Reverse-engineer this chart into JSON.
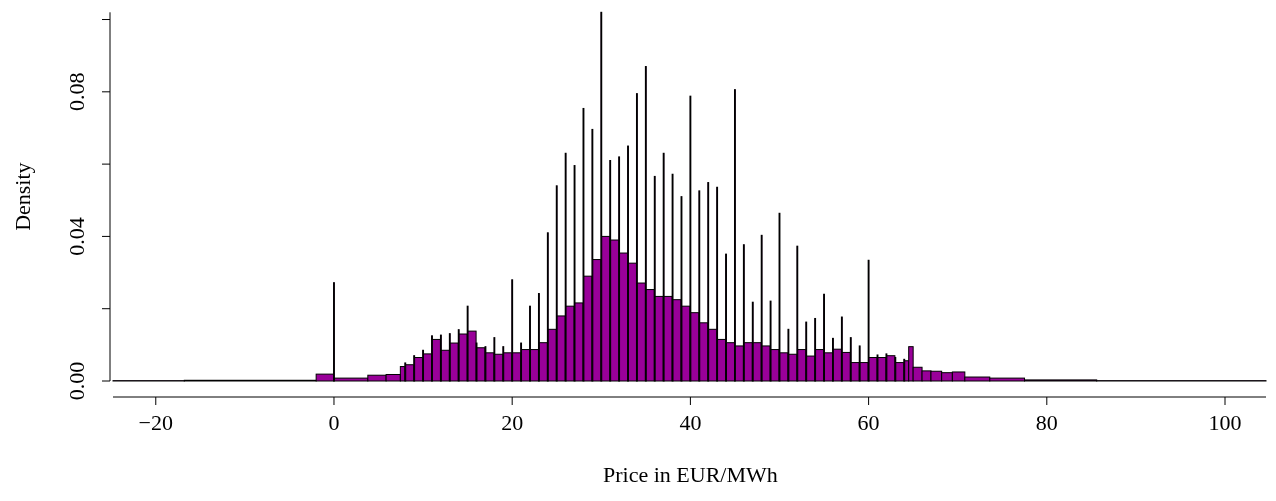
{
  "chart_data": {
    "type": "histogram",
    "xlabel": "Price in EUR/MWh",
    "ylabel": "Density",
    "color": "#990099",
    "xlim": [
      -24.8,
      104.6
    ],
    "ylim": [
      0,
      0.102
    ],
    "xticks": [
      {
        "value": -20,
        "label": "−20"
      },
      0,
      20,
      40,
      60,
      80,
      100
    ],
    "yticks": [
      {
        "value": 0,
        "label": "0.00"
      },
      {
        "value": 0.02,
        "label": null
      },
      {
        "value": 0.04,
        "label": "0.04"
      },
      {
        "value": 0.06,
        "label": null
      },
      {
        "value": 0.08,
        "label": "0.08"
      },
      {
        "value": 0.1,
        "label": null
      }
    ],
    "bins": [
      -24.8,
      -16.8,
      -2,
      -0.05,
      0.05,
      3.8,
      5.85,
      7.45,
      7.95,
      8.05,
      8.95,
      9.05,
      9.95,
      10.05,
      10.95,
      11.05,
      11.95,
      12.05,
      12.95,
      13.05,
      13.95,
      14.05,
      14.95,
      15.05,
      15.95,
      16.05,
      16.95,
      17.05,
      17.95,
      18.05,
      18.95,
      19.05,
      19.95,
      20.05,
      20.95,
      21.05,
      21.95,
      22.05,
      22.95,
      23.05,
      23.95,
      24.05,
      24.95,
      25.05,
      25.95,
      26.05,
      26.95,
      27.05,
      27.95,
      28.05,
      28.95,
      29.05,
      29.95,
      30.05,
      30.95,
      31.05,
      31.95,
      32.05,
      32.95,
      33.05,
      33.95,
      34.05,
      34.95,
      35.05,
      35.95,
      36.05,
      36.95,
      37.05,
      37.95,
      38.05,
      38.95,
      39.05,
      39.95,
      40.05,
      40.95,
      41.05,
      41.95,
      42.05,
      42.95,
      43.05,
      43.95,
      44.05,
      44.95,
      45.05,
      45.95,
      46.05,
      46.95,
      47.05,
      47.95,
      48.05,
      48.95,
      49.05,
      49.95,
      50.05,
      50.95,
      51.05,
      51.95,
      52.05,
      52.95,
      53.05,
      53.95,
      54.05,
      54.95,
      55.05,
      55.95,
      56.05,
      56.95,
      57.05,
      57.95,
      58.05,
      58.95,
      59.05,
      59.95,
      60.05,
      60.95,
      61.05,
      61.95,
      62.05,
      62.95,
      63.05,
      63.95,
      64.05,
      64.5,
      65,
      66,
      67,
      68.2,
      69.4,
      70.8,
      73.6,
      77.5,
      85.6,
      104.6
    ],
    "values": [
      0.0001,
      0.0002,
      0.0019,
      0.0272,
      0.0008,
      0.0016,
      0.0018,
      0.004,
      0.005,
      0.0045,
      0.007,
      0.0065,
      0.0085,
      0.0075,
      0.0125,
      0.0115,
      0.0127,
      0.0085,
      0.0131,
      0.0105,
      0.0142,
      0.013,
      0.0207,
      0.0138,
      0.0105,
      0.0092,
      0.0095,
      0.0078,
      0.012,
      0.0074,
      0.0095,
      0.0078,
      0.028,
      0.0078,
      0.0105,
      0.0087,
      0.0207,
      0.0087,
      0.0242,
      0.0106,
      0.041,
      0.0143,
      0.054,
      0.018,
      0.063,
      0.0207,
      0.0596,
      0.0216,
      0.0754,
      0.029,
      0.0696,
      0.0336,
      0.102,
      0.04,
      0.061,
      0.039,
      0.062,
      0.0354,
      0.065,
      0.0326,
      0.0795,
      0.0271,
      0.087,
      0.0253,
      0.0566,
      0.0234,
      0.063,
      0.0234,
      0.0572,
      0.0225,
      0.051,
      0.0207,
      0.0788,
      0.0189,
      0.0526,
      0.0161,
      0.0549,
      0.0143,
      0.0536,
      0.0115,
      0.0351,
      0.0106,
      0.0806,
      0.0097,
      0.0377,
      0.0106,
      0.0218,
      0.0106,
      0.0403,
      0.0097,
      0.0221,
      0.0087,
      0.0464,
      0.0078,
      0.0143,
      0.0074,
      0.0373,
      0.0087,
      0.0163,
      0.0069,
      0.0173,
      0.0087,
      0.024,
      0.0078,
      0.0118,
      0.0088,
      0.0177,
      0.0079,
      0.012,
      0.0051,
      0.0097,
      0.0051,
      0.0334,
      0.0065,
      0.0072,
      0.0065,
      0.0075,
      0.007,
      0.0065,
      0.0051,
      0.006,
      0.0056,
      0.0095,
      0.0038,
      0.0028,
      0.0027,
      0.0023,
      0.0025,
      0.0011,
      0.0008,
      0.0003,
      0.0001
    ]
  }
}
